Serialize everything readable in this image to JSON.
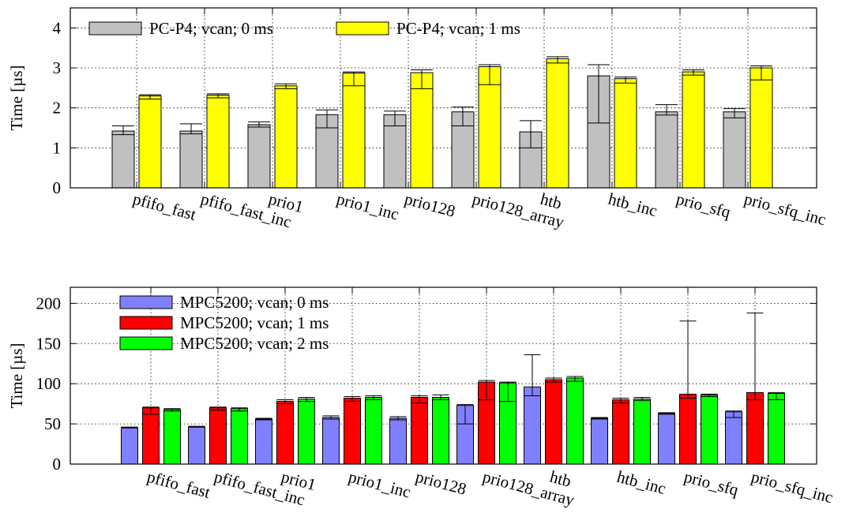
{
  "chart_data": [
    {
      "type": "bar",
      "ylabel": "Time [µs]",
      "ylim": [
        0,
        4.5
      ],
      "yticks": [
        0,
        1,
        2,
        3,
        4
      ],
      "grid": true,
      "legend_position": "top-left, horizontal",
      "categories": [
        "pfifo_fast",
        "pfifo_fast_inc",
        "prio1",
        "prio1_inc",
        "prio128",
        "prio128_array",
        "htb",
        "htb_inc",
        "prio_sfq",
        "prio_sfq_inc"
      ],
      "series": [
        {
          "name": "PC-P4; vcan; 0 ms",
          "color": "#c0c0c0",
          "values": [
            1.42,
            1.42,
            1.58,
            1.83,
            1.83,
            1.9,
            1.4,
            2.8,
            1.9,
            1.9
          ],
          "err_low": [
            1.33,
            1.35,
            1.52,
            1.5,
            1.55,
            1.55,
            1.0,
            1.62,
            1.82,
            1.75
          ],
          "err_high": [
            1.55,
            1.6,
            1.65,
            1.95,
            1.92,
            2.02,
            1.68,
            3.08,
            2.08,
            1.98
          ]
        },
        {
          "name": "PC-P4; vcan; 1 ms",
          "color": "#ffff00",
          "values": [
            2.3,
            2.32,
            2.55,
            2.87,
            2.88,
            3.03,
            3.23,
            2.73,
            2.9,
            3.0
          ],
          "err_low": [
            2.22,
            2.25,
            2.48,
            2.55,
            2.48,
            2.58,
            3.12,
            2.62,
            2.82,
            2.7
          ],
          "err_high": [
            2.33,
            2.35,
            2.6,
            2.9,
            2.95,
            3.08,
            3.28,
            2.77,
            2.95,
            3.05
          ]
        }
      ]
    },
    {
      "type": "bar",
      "ylabel": "Time [µs]",
      "ylim": [
        0,
        220
      ],
      "yticks": [
        0,
        50,
        100,
        150,
        200
      ],
      "grid": true,
      "legend_position": "top-left, vertical",
      "categories": [
        "pfifo_fast",
        "pfifo_fast_inc",
        "prio1",
        "prio1_inc",
        "prio128",
        "prio128_array",
        "htb",
        "htb_inc",
        "prio_sfq",
        "prio_sfq_inc"
      ],
      "series": [
        {
          "name": "MPC5200; vcan; 0 ms",
          "color": "#8080ff",
          "values": [
            45,
            46,
            56,
            58,
            57,
            73,
            96,
            57,
            63,
            65
          ],
          "err_low": [
            45,
            46,
            55,
            56,
            55,
            50,
            85,
            56,
            62,
            58
          ],
          "err_high": [
            46,
            47,
            57,
            60,
            59,
            74,
            136,
            58,
            64,
            66
          ]
        },
        {
          "name": "MPC5200; vcan; 1 ms",
          "color": "#ff0000",
          "values": [
            70,
            70,
            78,
            82,
            83,
            102,
            105,
            80,
            87,
            89
          ],
          "err_low": [
            62,
            67,
            75,
            78,
            76,
            80,
            102,
            76,
            82,
            80
          ],
          "err_high": [
            71,
            71,
            80,
            84,
            85,
            104,
            107,
            82,
            178,
            188
          ]
        },
        {
          "name": "MPC5200; vcan; 2 ms",
          "color": "#00ff00",
          "values": [
            68,
            69,
            81,
            83,
            83,
            101,
            107,
            81,
            86,
            88
          ],
          "err_low": [
            66,
            66,
            78,
            80,
            80,
            78,
            103,
            79,
            84,
            80
          ],
          "err_high": [
            69,
            70,
            83,
            85,
            86,
            102,
            109,
            83,
            87,
            89
          ]
        }
      ]
    }
  ]
}
